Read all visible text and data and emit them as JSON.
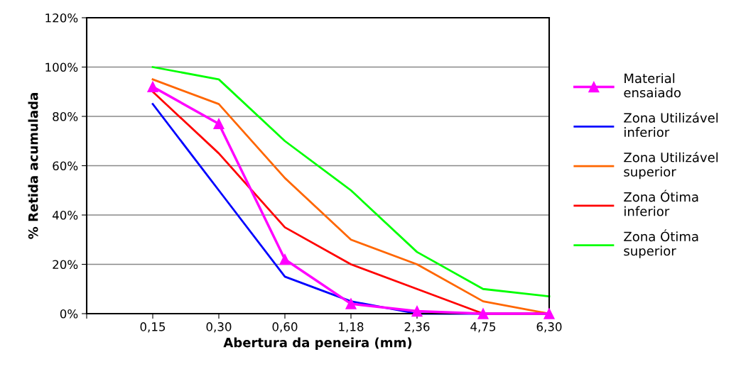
{
  "chart_data": {
    "type": "line",
    "xlabel": "Abertura da peneira (mm)",
    "ylabel": "% Retida acumulada",
    "categories": [
      null,
      "0,15",
      "0,30",
      "0,60",
      "1,18",
      "2,36",
      "4,75",
      "6,30"
    ],
    "series": [
      {
        "name": "Material ensaiado",
        "color": "#ff00ff",
        "marker": "triangle",
        "values": [
          null,
          92,
          77,
          22,
          4,
          1,
          0,
          0
        ]
      },
      {
        "name": "Zona Utilizável inferior",
        "color": "#0000ff",
        "marker": "none",
        "values": [
          null,
          85,
          50,
          15,
          5,
          0,
          0,
          0
        ]
      },
      {
        "name": "Zona Utilizável superior",
        "color": "#ff6600",
        "marker": "none",
        "values": [
          null,
          95,
          85,
          55,
          30,
          20,
          5,
          0
        ]
      },
      {
        "name": "Zona Ótima inferior",
        "color": "#ff0000",
        "marker": "none",
        "values": [
          null,
          90,
          65,
          35,
          20,
          10,
          0,
          0
        ]
      },
      {
        "name": "Zona Ótima superior",
        "color": "#00ff00",
        "marker": "none",
        "values": [
          null,
          100,
          95,
          70,
          50,
          25,
          10,
          7
        ]
      }
    ],
    "ylim": [
      0,
      120
    ],
    "yticks": [
      {
        "value": 0,
        "label": "0%"
      },
      {
        "value": 20,
        "label": "20%"
      },
      {
        "value": 40,
        "label": "40%"
      },
      {
        "value": 60,
        "label": "60%"
      },
      {
        "value": 80,
        "label": "80%"
      },
      {
        "value": 100,
        "label": "100%"
      },
      {
        "value": 120,
        "label": "120%"
      }
    ],
    "grid": "y",
    "legend": "right"
  }
}
